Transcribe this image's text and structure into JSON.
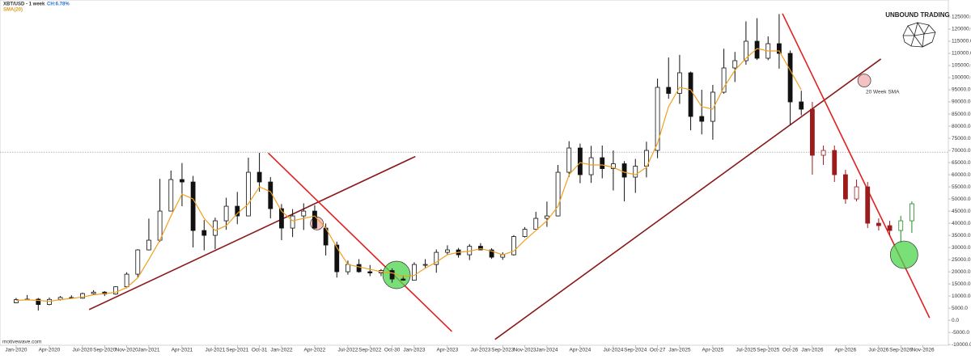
{
  "chart_data": {
    "type": "candlestick",
    "title": "XBT/USD - 1 week",
    "subtitle": "CH:6.78%",
    "indicator_label": "SMA(20)",
    "annotation": "20 Week SMA",
    "brand": "UNBOUND TRADING",
    "source": "motivewave.com",
    "xlim": [
      -1.46,
      84.3
    ],
    "ylim": [
      -10300,
      132000
    ],
    "xticks": [
      {
        "value": 0,
        "label": "Jan-2020"
      },
      {
        "value": 3,
        "label": "Apr-2020"
      },
      {
        "value": 6,
        "label": "Jul-2020"
      },
      {
        "value": 8,
        "label": "Sep-2020"
      },
      {
        "value": 10,
        "label": "Nov-2020"
      },
      {
        "value": 12,
        "label": "Jan-2021"
      },
      {
        "value": 15,
        "label": "Apr-2021"
      },
      {
        "value": 18,
        "label": "Jul-2021"
      },
      {
        "value": 20,
        "label": "Sep-2021"
      },
      {
        "value": 22,
        "label": "Oct-31"
      },
      {
        "value": 24,
        "label": "Jan-2022"
      },
      {
        "value": 27,
        "label": "Apr-2022"
      },
      {
        "value": 30,
        "label": "Jul-2022"
      },
      {
        "value": 32,
        "label": "Sep-2022"
      },
      {
        "value": 34,
        "label": "Oct-30"
      },
      {
        "value": 36,
        "label": "Jan-2023"
      },
      {
        "value": 39,
        "label": "Apr-2023"
      },
      {
        "value": 42,
        "label": "Jul-2023"
      },
      {
        "value": 44,
        "label": "Sep-2023"
      },
      {
        "value": 46,
        "label": "Nov-2023"
      },
      {
        "value": 48,
        "label": "Jan-2024"
      },
      {
        "value": 51,
        "label": "Apr-2024"
      },
      {
        "value": 54,
        "label": "Jul-2024"
      },
      {
        "value": 56,
        "label": "Sep-2024"
      },
      {
        "value": 58,
        "label": "Oct-27"
      },
      {
        "value": 60,
        "label": "Jan-2025"
      },
      {
        "value": 63,
        "label": "Apr-2025"
      },
      {
        "value": 66,
        "label": "Jul-2025"
      },
      {
        "value": 68,
        "label": "Sep-2025"
      },
      {
        "value": 70,
        "label": "Oct-26"
      },
      {
        "value": 72,
        "label": "Jan-2026"
      },
      {
        "value": 75,
        "label": "Apr-2026"
      },
      {
        "value": 78,
        "label": "Jul-2026"
      },
      {
        "value": 80,
        "label": "Sep-2026"
      },
      {
        "value": 82,
        "label": "Nov-2026"
      }
    ],
    "yticks": [
      {
        "value": -10000,
        "label": "-10000.0"
      },
      {
        "value": -5000,
        "label": "-5000.0"
      },
      {
        "value": 0,
        "label": "0.0"
      },
      {
        "value": 5000,
        "label": "5000.0"
      },
      {
        "value": 10000,
        "label": "10000.0"
      },
      {
        "value": 15000,
        "label": "15000.0"
      },
      {
        "value": 20000,
        "label": "20000.0"
      },
      {
        "value": 25000,
        "label": "25000.0"
      },
      {
        "value": 30000,
        "label": "30000.0"
      },
      {
        "value": 35000,
        "label": "35000.0"
      },
      {
        "value": 40000,
        "label": "40000.0"
      },
      {
        "value": 45000,
        "label": "45000.0"
      },
      {
        "value": 50000,
        "label": "50000.0"
      },
      {
        "value": 55000,
        "label": "55000.0"
      },
      {
        "value": 60000,
        "label": "60000.0"
      },
      {
        "value": 65000,
        "label": "65000.0"
      },
      {
        "value": 70000,
        "label": "70000.0"
      },
      {
        "value": 75000,
        "label": "75000.0"
      },
      {
        "value": 80000,
        "label": "80000.0"
      },
      {
        "value": 85000,
        "label": "85000.0"
      },
      {
        "value": 90000,
        "label": "90000.0"
      },
      {
        "value": 95000,
        "label": "95000.0"
      },
      {
        "value": 100000,
        "label": "100000.0"
      },
      {
        "value": 105000,
        "label": "105000.0"
      },
      {
        "value": 110000,
        "label": "110000.0"
      },
      {
        "value": 115000,
        "label": "115000.0"
      },
      {
        "value": 120000,
        "label": "120000.0"
      },
      {
        "value": 125000,
        "label": "125000.0"
      }
    ],
    "hline": 69300,
    "series": [
      {
        "color": "#111111",
        "x": [
          0,
          1,
          2,
          3,
          4,
          5,
          6,
          7,
          8,
          9,
          10,
          11,
          12,
          13,
          14,
          15,
          16,
          17,
          18,
          19,
          20,
          21,
          22,
          23,
          24,
          25,
          26,
          27,
          28,
          29,
          30,
          31,
          32,
          33,
          34,
          35,
          36,
          37,
          38,
          39,
          40,
          41,
          42,
          43,
          44,
          45,
          46,
          47,
          48,
          49,
          50,
          51,
          52,
          53,
          54,
          55,
          56,
          57,
          58,
          59,
          60,
          61,
          62,
          63,
          64,
          65,
          66,
          67,
          68,
          69,
          70,
          71
        ],
        "open": [
          7200,
          8500,
          8700,
          6500,
          8600,
          9400,
          9100,
          11000,
          11600,
          10800,
          13800,
          19000,
          29000,
          33000,
          45000,
          58000,
          57000,
          37000,
          35000,
          41000,
          47000,
          43000,
          61000,
          57000,
          46000,
          38000,
          43000,
          45000,
          38000,
          31000,
          20000,
          23000,
          20000,
          19500,
          20500,
          17000,
          16500,
          23000,
          23000,
          28000,
          29000,
          27000,
          30500,
          29000,
          26000,
          27000,
          34500,
          37500,
          42000,
          43000,
          61000,
          71000,
          60000,
          67000,
          62500,
          64500,
          59000,
          63500,
          70000,
          96000,
          93500,
          102000,
          84000,
          82000,
          94000,
          104000,
          107000,
          115000,
          108000,
          114000,
          110000,
          90000
        ],
        "high": [
          9200,
          10400,
          9200,
          9400,
          10000,
          10300,
          11400,
          12400,
          12000,
          14000,
          19800,
          29300,
          41900,
          58300,
          61700,
          64800,
          59500,
          41300,
          42300,
          50500,
          52900,
          67000,
          69000,
          59000,
          47900,
          45800,
          48200,
          47400,
          39900,
          32400,
          24600,
          25200,
          22800,
          21100,
          21400,
          18400,
          23900,
          25200,
          29200,
          30900,
          29800,
          31400,
          31800,
          29700,
          28000,
          35100,
          38400,
          44700,
          48900,
          64000,
          73800,
          72800,
          71900,
          72000,
          70000,
          65600,
          66500,
          73600,
          99600,
          108300,
          109400,
          102500,
          95000,
          97000,
          111900,
          110600,
          123200,
          124500,
          117000,
          126200,
          111200,
          94600
        ],
        "low": [
          7000,
          8400,
          4000,
          6200,
          8100,
          8900,
          8900,
          10600,
          10000,
          10500,
          13200,
          17600,
          28800,
          32300,
          44900,
          47000,
          30000,
          28800,
          29300,
          37300,
          39600,
          43000,
          53000,
          42000,
          33000,
          34300,
          37200,
          37700,
          26700,
          17600,
          18800,
          19600,
          18200,
          18200,
          15500,
          16300,
          16500,
          21400,
          19600,
          27000,
          25800,
          24800,
          28900,
          25300,
          24900,
          26700,
          34100,
          37600,
          38500,
          42800,
          59100,
          56500,
          56600,
          58500,
          53500,
          49000,
          52500,
          58900,
          66800,
          91300,
          89200,
          78300,
          76600,
          74400,
          93400,
          98200,
          105300,
          107300,
          107200,
          103700,
          80600,
          84500
        ],
        "close": [
          8500,
          8700,
          6500,
          8600,
          9400,
          9100,
          11000,
          11600,
          10800,
          13800,
          19000,
          29000,
          33000,
          45000,
          58000,
          57000,
          37000,
          35000,
          41000,
          47000,
          43000,
          61000,
          57000,
          46000,
          38000,
          43000,
          45000,
          38000,
          31000,
          20000,
          23000,
          20000,
          19500,
          20500,
          17000,
          16500,
          23000,
          23000,
          28000,
          29000,
          27000,
          30500,
          29000,
          26000,
          27000,
          34500,
          37500,
          42000,
          43000,
          61000,
          71000,
          60000,
          67000,
          62500,
          64500,
          59000,
          63500,
          70000,
          96000,
          93500,
          102000,
          84000,
          82000,
          94000,
          104000,
          107000,
          115000,
          108000,
          114000,
          110000,
          90000,
          87000
        ]
      },
      {
        "color": "#9b1c1c",
        "x": [
          72,
          73,
          74,
          75,
          76,
          77,
          78,
          79
        ],
        "open": [
          87000,
          68000,
          70000,
          60000,
          50000,
          55000,
          40000,
          39000
        ],
        "high": [
          90000,
          72000,
          72000,
          62000,
          58000,
          57000,
          42000,
          41000
        ],
        "low": [
          60000,
          64000,
          57000,
          48000,
          49000,
          38000,
          37000,
          35000
        ],
        "close": [
          68000,
          70000,
          60000,
          50000,
          55000,
          40000,
          39000,
          37000
        ]
      },
      {
        "color": "#1f8a1f",
        "x": [
          80,
          81
        ],
        "open": [
          37000,
          41000
        ],
        "high": [
          43000,
          49000
        ],
        "low": [
          32000,
          36000
        ],
        "close": [
          41000,
          48000
        ]
      }
    ],
    "sma": {
      "color": "#f0a020",
      "x": [
        0,
        1,
        2,
        3,
        4,
        5,
        6,
        7,
        8,
        9,
        10,
        11,
        12,
        13,
        14,
        15,
        16,
        17,
        18,
        19,
        20,
        21,
        22,
        23,
        24,
        25,
        26,
        27,
        28,
        29,
        30,
        31,
        32,
        33,
        34,
        35,
        36,
        37,
        38,
        39,
        40,
        41,
        42,
        43,
        44,
        45,
        46,
        47,
        48,
        49,
        50,
        51,
        52,
        53,
        54,
        55,
        56,
        57,
        58,
        59,
        60,
        61,
        62,
        63,
        64,
        65,
        66,
        67,
        68,
        69,
        70,
        71
      ],
      "values": [
        8200,
        8400,
        8200,
        7800,
        8500,
        9000,
        9600,
        10500,
        11000,
        11500,
        13500,
        17500,
        25000,
        33000,
        43000,
        52000,
        50000,
        42000,
        37000,
        39000,
        44000,
        48000,
        55000,
        53000,
        45000,
        41000,
        42000,
        43000,
        38000,
        30000,
        23000,
        22000,
        21000,
        20000,
        19500,
        18000,
        18500,
        21500,
        24000,
        27000,
        28000,
        28500,
        29500,
        28500,
        27000,
        28500,
        33000,
        37000,
        41000,
        47000,
        60000,
        65000,
        64000,
        64000,
        63000,
        61000,
        60000,
        63000,
        73000,
        88000,
        96000,
        95000,
        88000,
        87000,
        96000,
        103000,
        108000,
        112000,
        111000,
        111000,
        103000,
        95000
      ]
    },
    "trendlines": [
      {
        "color": "#8b1a1a",
        "points": [
          [
            6.6,
            4400
          ],
          [
            36.1,
            67500
          ]
        ]
      },
      {
        "color": "#e02020",
        "points": [
          [
            22.8,
            68900
          ],
          [
            39.4,
            -4600
          ]
        ]
      },
      {
        "color": "#8b1a1a",
        "points": [
          [
            43.3,
            -7900
          ],
          [
            78.2,
            107700
          ]
        ]
      },
      {
        "color": "#e02020",
        "points": [
          [
            69.3,
            126400
          ],
          [
            82.6,
            1000
          ]
        ]
      }
    ],
    "markers": [
      {
        "kind": "small",
        "color": "#e05050",
        "x": 27.2,
        "y": 39900
      },
      {
        "kind": "small",
        "color": "#e05050",
        "x": 76.7,
        "y": 98800
      },
      {
        "kind": "large",
        "color": "#4cd44c",
        "x": 34.4,
        "y": 18700
      },
      {
        "kind": "large",
        "color": "#4cd44c",
        "x": 80.3,
        "y": 27000
      }
    ]
  }
}
